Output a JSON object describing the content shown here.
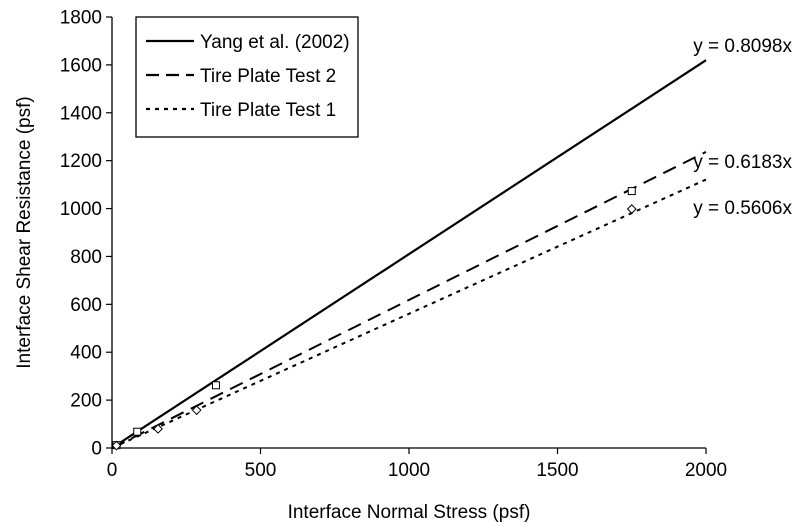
{
  "chart_data": {
    "type": "scatter",
    "title": "",
    "xlabel": "Interface Normal Stress (psf)",
    "ylabel": "Interface Shear Resistance (psf)",
    "xlim": [
      0,
      2000
    ],
    "ylim": [
      0,
      1800
    ],
    "x_ticks": [
      "0",
      "500",
      "1000",
      "1500",
      "2000"
    ],
    "y_ticks": [
      "0",
      "200",
      "400",
      "600",
      "800",
      "1000",
      "1200",
      "1400",
      "1600",
      "1800"
    ],
    "grid": false,
    "legend_position": "top-left",
    "series": [
      {
        "name": "Yang et al. (2002)",
        "kind": "line",
        "line_style": "solid",
        "slope": 0.8098,
        "x_range": [
          0,
          2000
        ],
        "equation_label": "y = 0.8098x"
      },
      {
        "name": "Tire Plate Test 2",
        "kind": "line",
        "line_style": "dashed",
        "slope": 0.6183,
        "x_range": [
          0,
          2000
        ],
        "equation_label": "y = 0.6183x",
        "marker": "square",
        "points": [
          {
            "x": 15,
            "y": 12
          },
          {
            "x": 85,
            "y": 68
          },
          {
            "x": 350,
            "y": 262
          },
          {
            "x": 1750,
            "y": 1073
          }
        ]
      },
      {
        "name": "Tire Plate Test 1",
        "kind": "line",
        "line_style": "dotted",
        "slope": 0.5606,
        "x_range": [
          0,
          2000
        ],
        "equation_label": "y = 0.5606x",
        "marker": "diamond",
        "points": [
          {
            "x": 15,
            "y": 10
          },
          {
            "x": 155,
            "y": 80
          },
          {
            "x": 285,
            "y": 158
          },
          {
            "x": 1750,
            "y": 998
          }
        ]
      }
    ]
  }
}
